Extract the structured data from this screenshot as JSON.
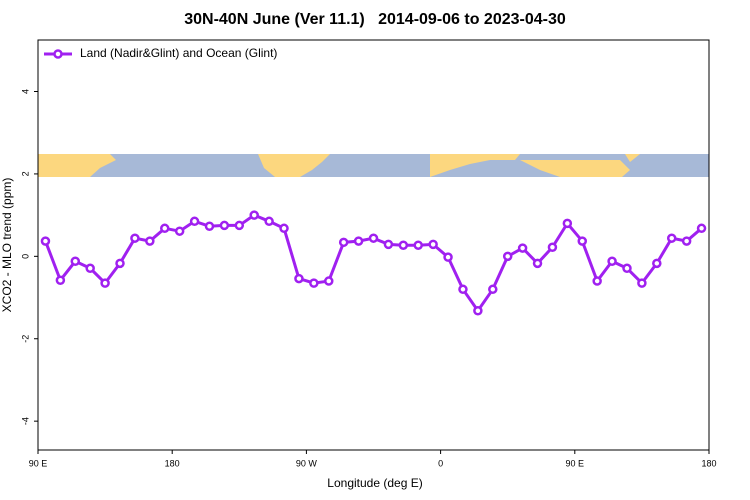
{
  "chart_data": {
    "type": "line",
    "title": "30N-40N June (Ver 11.1)   2014-09-06 to 2023-04-30",
    "x_label": "Longitude (deg E)",
    "y_label": "XCO2 - MLO trend (ppm)",
    "x": [
      95,
      105,
      115,
      125,
      135,
      145,
      155,
      165,
      175,
      185,
      195,
      205,
      215,
      225,
      235,
      245,
      255,
      265,
      275,
      285,
      295,
      305,
      315,
      325,
      335,
      345,
      355,
      365,
      375,
      385,
      395,
      405,
      415,
      425,
      435,
      445,
      455,
      465,
      475,
      485,
      495,
      505,
      515,
      525,
      535
    ],
    "series": [
      {
        "name": "Land (Nadir&Glint) and Ocean (Glint)",
        "color": "#a020f0",
        "values": [
          0.37,
          -0.58,
          -0.12,
          -0.29,
          -0.65,
          -0.17,
          0.44,
          0.37,
          0.68,
          0.61,
          0.85,
          0.73,
          0.75,
          0.75,
          1.0,
          0.85,
          0.68,
          -0.54,
          -0.65,
          -0.6,
          0.34,
          0.37,
          0.44,
          0.29,
          0.27,
          0.27,
          0.29,
          -0.02,
          -0.8,
          -1.32,
          -0.8,
          0,
          0.2,
          -0.17,
          0.22,
          0.8,
          0.37,
          -0.6,
          -0.12,
          -0.29,
          -0.65,
          -0.17,
          0.44,
          0.37,
          0.68
        ]
      }
    ],
    "xlim": [
      90,
      540
    ],
    "xticks": [
      {
        "value": 90,
        "label": "90 E"
      },
      {
        "value": 180,
        "label": "180"
      },
      {
        "value": 270,
        "label": "90 W"
      },
      {
        "value": 360,
        "label": "0"
      },
      {
        "value": 450,
        "label": "90 E"
      },
      {
        "value": 540,
        "label": "180"
      }
    ],
    "ylim": [
      -4.7,
      5.25
    ],
    "yticks": [
      -4,
      -2,
      0,
      2,
      4
    ],
    "legend": "top-left"
  }
}
